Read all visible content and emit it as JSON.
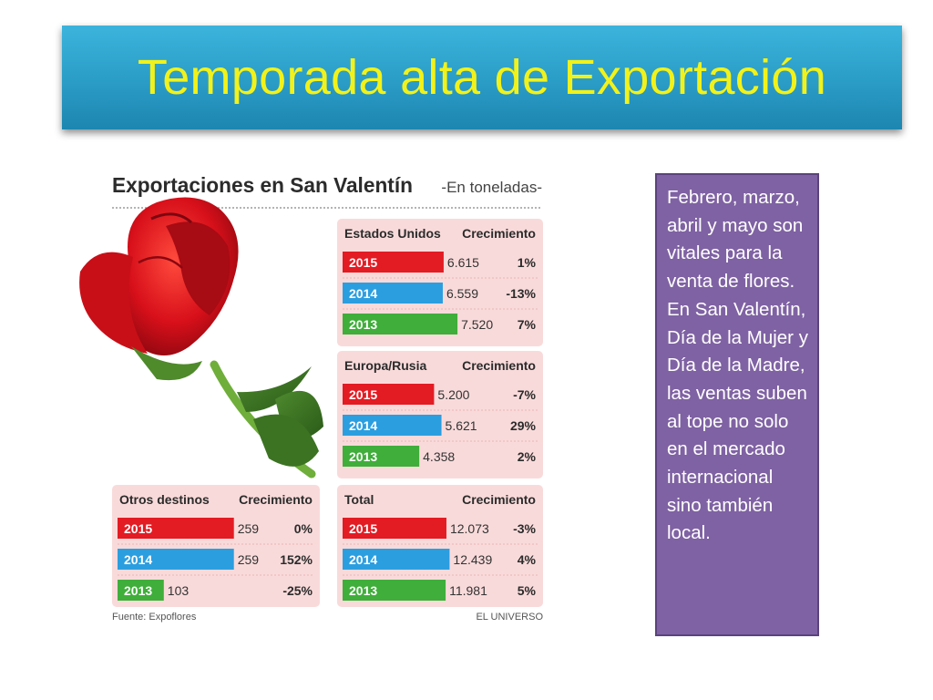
{
  "slide": {
    "title": "Temporada alta de Exportación",
    "side_text": "Febrero, marzo, abril y mayo son vitales para la venta de flores. En San Valentín, Día de la Mujer y Día de la Madre, las ventas suben al tope no solo en el mercado internacional sino también local."
  },
  "chart_data": {
    "type": "bar",
    "title": "Exportaciones en San Valentín",
    "subtitle": "-En toneladas-",
    "source": "Fuente: Expoflores",
    "credit": "EL UNIVERSO",
    "growth_header": "Crecimiento",
    "colors": {
      "2015": "#e31b23",
      "2014": "#2b9ee0",
      "2013": "#3fae3a"
    },
    "panels": [
      {
        "name": "Estados Unidos",
        "max": 7.6,
        "rows": [
          {
            "year": "2015",
            "value": 6.615,
            "label": "6.615",
            "growth": "1%"
          },
          {
            "year": "2014",
            "value": 6.559,
            "label": "6.559",
            "growth": "-13%"
          },
          {
            "year": "2013",
            "value": 7.52,
            "label": "7.520",
            "growth": "7%"
          }
        ]
      },
      {
        "name": "Europa/Rusia",
        "max": 6.6,
        "rows": [
          {
            "year": "2015",
            "value": 5.2,
            "label": "5.200",
            "growth": "-7%"
          },
          {
            "year": "2014",
            "value": 5.621,
            "label": "5.621",
            "growth": "29%"
          },
          {
            "year": "2013",
            "value": 4.358,
            "label": "4.358",
            "growth": "2%"
          }
        ]
      },
      {
        "name": "Otros destinos",
        "max": 280,
        "rows": [
          {
            "year": "2015",
            "value": 259,
            "label": "259",
            "growth": "0%"
          },
          {
            "year": "2014",
            "value": 259,
            "label": "259",
            "growth": "152%"
          },
          {
            "year": "2013",
            "value": 103,
            "label": "103",
            "growth": "-25%"
          }
        ]
      },
      {
        "name": "Total",
        "max": 13.5,
        "rows": [
          {
            "year": "2015",
            "value": 12.073,
            "label": "12.073",
            "growth": "-3%"
          },
          {
            "year": "2014",
            "value": 12.439,
            "label": "12.439",
            "growth": "4%"
          },
          {
            "year": "2013",
            "value": 11.981,
            "label": "11.981",
            "growth": "5%"
          }
        ]
      }
    ]
  }
}
